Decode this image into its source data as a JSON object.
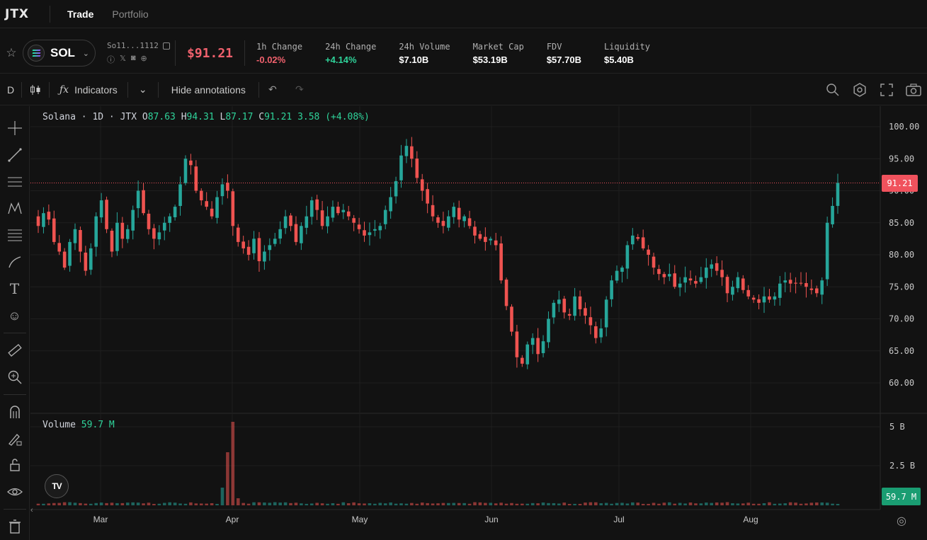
{
  "app": {
    "logo": "JTX",
    "tabs": [
      {
        "label": "Trade",
        "active": true
      },
      {
        "label": "Portfolio",
        "active": false
      }
    ]
  },
  "token": {
    "symbol": "SOL",
    "address": "So11...1112",
    "price": "$91.21",
    "stats": [
      {
        "label": "1h Change",
        "value": "-0.02%",
        "tone": "neg"
      },
      {
        "label": "24h Change",
        "value": "+4.14%",
        "tone": "pos"
      },
      {
        "label": "24h Volume",
        "value": "$7.10B",
        "tone": ""
      },
      {
        "label": "Market Cap",
        "value": "$53.19B",
        "tone": ""
      },
      {
        "label": "FDV",
        "value": "$57.70B",
        "tone": ""
      },
      {
        "label": "Liquidity",
        "value": "$5.40B",
        "tone": ""
      }
    ]
  },
  "toolbar": {
    "interval": "D",
    "indicators_label": "Indicators",
    "hide_annotations_label": "Hide annotations"
  },
  "legend": {
    "title": "Solana · 1D · JTX",
    "o_label": "O",
    "o": "87.63",
    "h_label": "H",
    "h": "94.31",
    "l_label": "L",
    "l": "87.17",
    "c_label": "C",
    "c": "91.21",
    "change": "3.58 (+4.08%)"
  },
  "volume_legend": {
    "label": "Volume",
    "value": "59.7 M"
  },
  "price_tag": "91.21",
  "volume_tag": "59.7 M",
  "colors": {
    "up": "#26a69a",
    "down": "#ef5350",
    "accent_red": "#f0525d",
    "accent_green": "#1a9d72"
  },
  "chart_data": {
    "type": "candlestick",
    "title": "Solana · 1D · JTX",
    "y_ticks": [
      "100.00",
      "95.00",
      "90.00",
      "85.00",
      "80.00",
      "75.00",
      "70.00",
      "65.00",
      "60.00"
    ],
    "ylim": [
      56.5,
      102.5
    ],
    "x_ticks": [
      "Mar",
      "Apr",
      "May",
      "Jun",
      "Jul",
      "Aug"
    ],
    "volume_ticks": [
      "5 B",
      "2.5 B"
    ],
    "last_price": 91.21,
    "closes": [
      84.5,
      86.5,
      85.5,
      82.0,
      80.5,
      78.0,
      82.0,
      84.0,
      80.5,
      77.5,
      81.0,
      86.0,
      88.5,
      84.0,
      80.5,
      85.0,
      82.5,
      84.0,
      87.0,
      90.0,
      86.5,
      84.0,
      82.5,
      83.5,
      85.0,
      86.0,
      87.5,
      91.0,
      95.0,
      94.0,
      90.0,
      88.5,
      87.5,
      86.0,
      89.0,
      91.0,
      90.0,
      84.5,
      82.0,
      81.0,
      80.0,
      82.5,
      79.0,
      80.5,
      81.5,
      82.5,
      84.0,
      86.0,
      84.5,
      82.0,
      84.5,
      86.0,
      88.5,
      87.0,
      84.5,
      86.0,
      87.5,
      86.5,
      87.0,
      86.0,
      85.0,
      84.0,
      83.0,
      83.5,
      84.0,
      84.5,
      87.0,
      89.0,
      91.5,
      95.5,
      97.0,
      95.0,
      92.0,
      90.0,
      88.0,
      86.0,
      85.0,
      84.5,
      86.0,
      87.5,
      85.5,
      86.0,
      84.5,
      83.0,
      82.5,
      82.0,
      82.5,
      81.5,
      76.0,
      72.0,
      68.0,
      64.0,
      63.0,
      66.0,
      67.0,
      64.5,
      66.5,
      70.0,
      72.5,
      73.0,
      71.0,
      70.5,
      73.5,
      71.5,
      70.5,
      69.0,
      67.0,
      68.5,
      73.0,
      76.0,
      77.5,
      78.0,
      81.5,
      83.0,
      82.5,
      81.0,
      80.0,
      78.0,
      77.0,
      76.5,
      77.0,
      75.0,
      75.5,
      76.5,
      76.0,
      75.5,
      76.5,
      78.0,
      78.5,
      77.5,
      76.5,
      74.0,
      75.0,
      76.5,
      74.5,
      73.5,
      73.0,
      72.5,
      73.5,
      73.0,
      73.5,
      75.5,
      76.0,
      75.5,
      75.5,
      75.5,
      75.0,
      74.5,
      74.0,
      76.0,
      85.0,
      87.63,
      91.21
    ],
    "volumes_relative": "mostly ~0.05B baseline; spike to ~5.1B in early April",
    "current_volume": "59.7 M"
  }
}
